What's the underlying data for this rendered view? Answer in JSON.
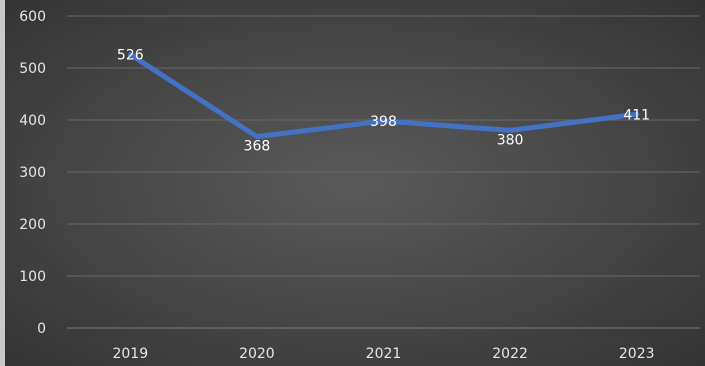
{
  "chart_data": {
    "type": "line",
    "title": "",
    "xlabel": "",
    "ylabel": "",
    "categories": [
      "2019",
      "2020",
      "2021",
      "2022",
      "2023"
    ],
    "series": [
      {
        "values": [
          526,
          368,
          398,
          380,
          411
        ],
        "color": "#4472c4"
      }
    ],
    "ylim": [
      0,
      600
    ],
    "yticks": [
      0,
      100,
      200,
      300,
      400,
      500,
      600
    ],
    "grid": true,
    "legend": "none",
    "data_labels": true,
    "background": "dark-radial-gradient"
  }
}
